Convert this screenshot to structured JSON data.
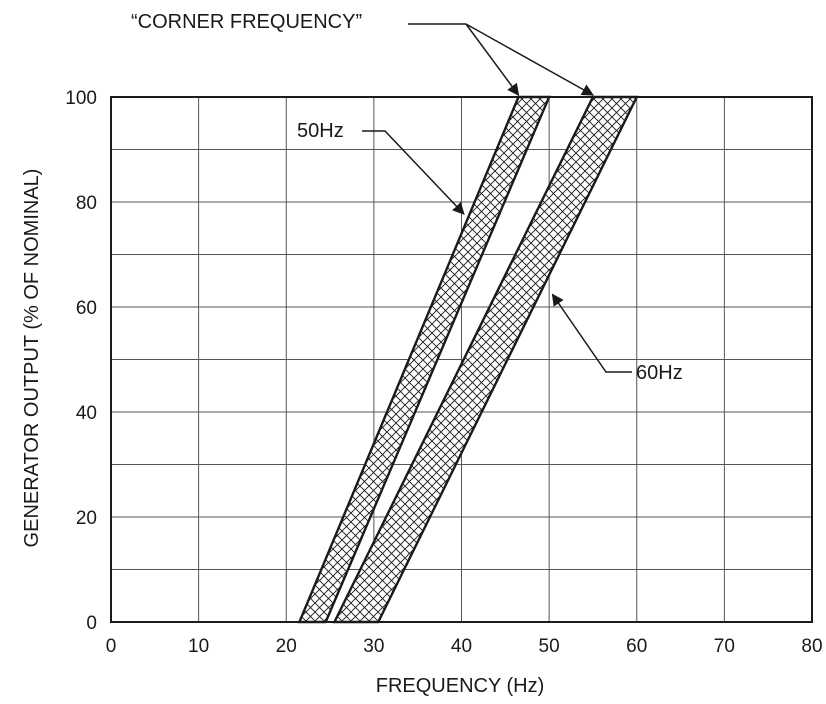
{
  "chart_data": {
    "type": "area",
    "title": "",
    "xlabel": "FREQUENCY (Hz)",
    "ylabel": "GENERATOR OUTPUT (% OF NOMINAL)",
    "xlim": [
      0,
      80
    ],
    "ylim": [
      0,
      100
    ],
    "x_ticks": [
      "0",
      "10",
      "20",
      "30",
      "40",
      "50",
      "60",
      "70",
      "80"
    ],
    "y_ticks": [
      "0",
      "20",
      "40",
      "60",
      "80",
      "100"
    ],
    "grid": true,
    "fill_pattern": "crosshatch",
    "bands": [
      {
        "name": "50Hz",
        "lower_edge": [
          [
            21.5,
            0
          ],
          [
            46.5,
            100
          ]
        ],
        "upper_edge": [
          [
            24.5,
            0
          ],
          [
            50,
            100
          ]
        ]
      },
      {
        "name": "60Hz",
        "lower_edge": [
          [
            25.5,
            0
          ],
          [
            55,
            100
          ]
        ],
        "upper_edge": [
          [
            30.5,
            0
          ],
          [
            60,
            100
          ]
        ]
      }
    ],
    "annotations": [
      {
        "text": "“CORNER FREQUENCY”",
        "points_to": [
          [
            46.5,
            100
          ],
          [
            55,
            100
          ]
        ]
      },
      {
        "text": "50Hz",
        "points_to": [
          [
            40.5,
            80
          ]
        ]
      },
      {
        "text": "60Hz",
        "points_to": [
          [
            50.5,
            62
          ]
        ]
      }
    ]
  }
}
